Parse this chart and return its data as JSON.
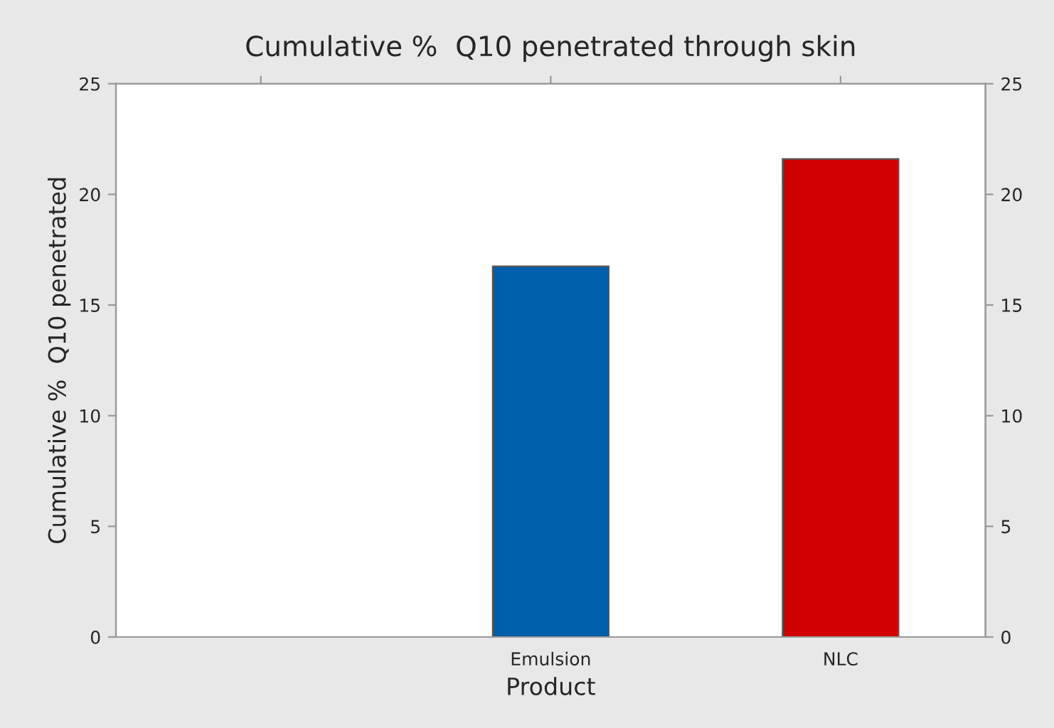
{
  "chart_data": {
    "type": "bar",
    "title": "Cumulative %  Q10 penetrated through skin",
    "xlabel": "Product",
    "ylabel": "Cumulative %  Q10 penetrated",
    "categories": [
      null,
      "Emulsion",
      "NLC"
    ],
    "values": [
      null,
      16.75,
      21.6
    ],
    "colors": [
      "#005ead",
      "#005ead",
      "#d10000"
    ],
    "ylim": [
      0,
      25
    ],
    "yticks": [
      0,
      5,
      10,
      15,
      20,
      25
    ],
    "y2lim": [
      0,
      25
    ],
    "y2ticks": [
      0,
      5,
      10,
      15,
      20,
      25
    ],
    "grid": false,
    "legend": false
  }
}
